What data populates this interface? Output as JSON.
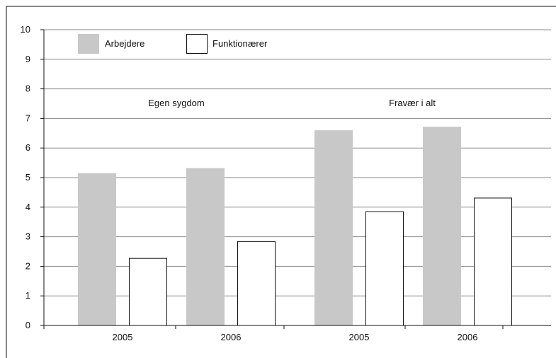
{
  "chart_data": {
    "type": "bar",
    "groups": [
      {
        "label": "Egen sygdom",
        "categories": [
          "2005",
          "2006"
        ]
      },
      {
        "label": "Fravær i alt",
        "categories": [
          "2005",
          "2006"
        ]
      }
    ],
    "categories": [
      "2005",
      "2006",
      "2005",
      "2006"
    ],
    "series": [
      {
        "name": "Arbejdere",
        "color": "#c8c8c8",
        "values": [
          5.15,
          5.32,
          6.6,
          6.72
        ]
      },
      {
        "name": "Funktionærer",
        "color": "#ffffff",
        "values": [
          2.28,
          2.85,
          3.86,
          4.32
        ]
      }
    ],
    "ylim": [
      0,
      10
    ],
    "yticks": [
      "0",
      "1",
      "2",
      "3",
      "4",
      "5",
      "6",
      "7",
      "8",
      "9",
      "10"
    ],
    "grid": true,
    "legend": "top-left",
    "title": "",
    "xlabel": "",
    "ylabel": ""
  }
}
